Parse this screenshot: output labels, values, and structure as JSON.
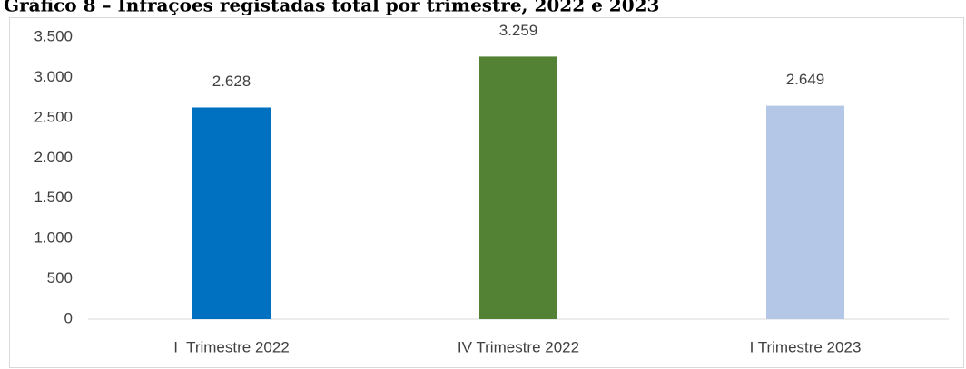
{
  "chart_data": {
    "type": "bar",
    "title": "Gráfico 8 – Infrações registadas total por trimestre, 2022 e 2023",
    "categories": [
      "I  Trimestre 2022",
      "IV Trimestre 2022",
      "I Trimestre 2023"
    ],
    "values": [
      2628,
      3259,
      2649
    ],
    "value_labels": [
      "2.628",
      "3.259",
      "2.649"
    ],
    "colors": [
      "#0070c0",
      "#548235",
      "#b4c7e7"
    ],
    "ylim": [
      0,
      3500
    ],
    "yticks": [
      0,
      500,
      {
        "value": 1000,
        "label": "1.000"
      },
      {
        "value": 1500,
        "label": "1.500"
      },
      {
        "value": 2000,
        "label": "2.000"
      },
      {
        "value": 2500,
        "label": "2.500"
      },
      {
        "value": 3000,
        "label": "3.000"
      },
      {
        "value": 3500,
        "label": "3.500"
      }
    ],
    "grid": false
  }
}
